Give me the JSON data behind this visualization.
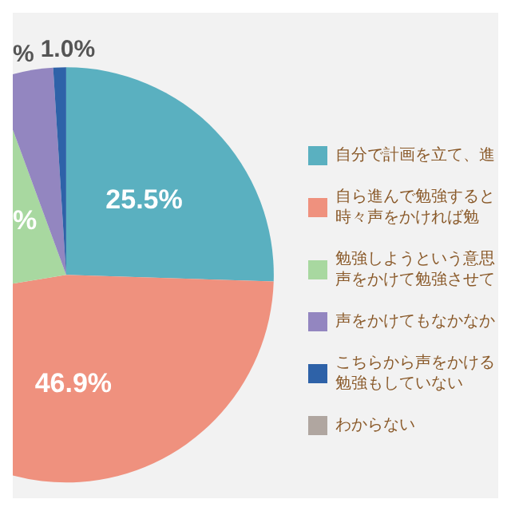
{
  "chart_data": {
    "type": "pie",
    "categories": [
      "自分で計画を立て、進",
      "自ら進んで勉強すると時々声をかければ勉",
      "勉強しようという意思声をかけて勉強させて",
      "声をかけてもなかなか",
      "こちらから声をかける勉強もしていない",
      "わからない"
    ],
    "values": [
      25.5,
      46.9,
      22.0,
      4.6,
      1.0,
      0
    ],
    "value_labels": [
      "25.5%",
      "46.9%",
      "%",
      "%",
      "1.0%",
      null
    ],
    "colors": [
      "#5ab0c0",
      "#ef917e",
      "#a8d8a0",
      "#9386c0",
      "#2e62a8",
      "#b0a6a0"
    ],
    "legend": "right"
  }
}
